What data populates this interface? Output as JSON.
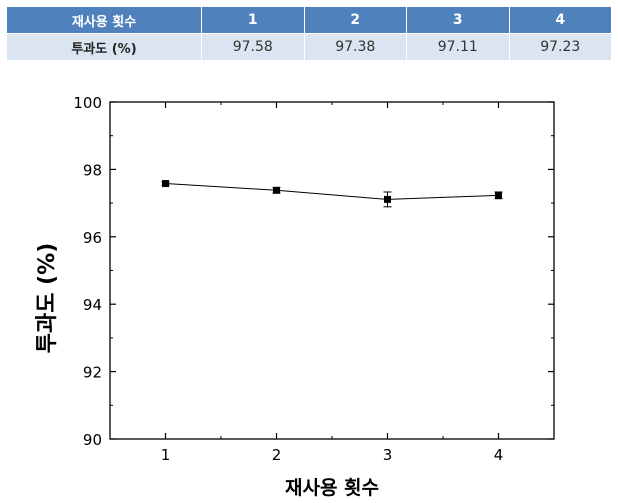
{
  "table": {
    "header": [
      "재사용 횟수",
      "1",
      "2",
      "3",
      "4"
    ],
    "row": [
      "투과도 (%)",
      "97.58",
      "97.38",
      "97.11",
      "97.23"
    ]
  },
  "chart_data": {
    "type": "line",
    "xlabel": "재사용 횟수",
    "ylabel": "투과도 (%)",
    "x": [
      1,
      2,
      3,
      4
    ],
    "xticks": [
      "1",
      "2",
      "3",
      "4"
    ],
    "yticks": [
      "90",
      "92",
      "94",
      "96",
      "98",
      "100"
    ],
    "xlim": [
      0.5,
      4.5
    ],
    "ylim": [
      90,
      100
    ],
    "series": [
      {
        "values": [
          97.58,
          97.38,
          97.11,
          97.23
        ],
        "errors": [
          0.05,
          0.08,
          0.22,
          0.1
        ]
      }
    ],
    "colors": {
      "line": "#000000",
      "marker": "#000000"
    }
  }
}
